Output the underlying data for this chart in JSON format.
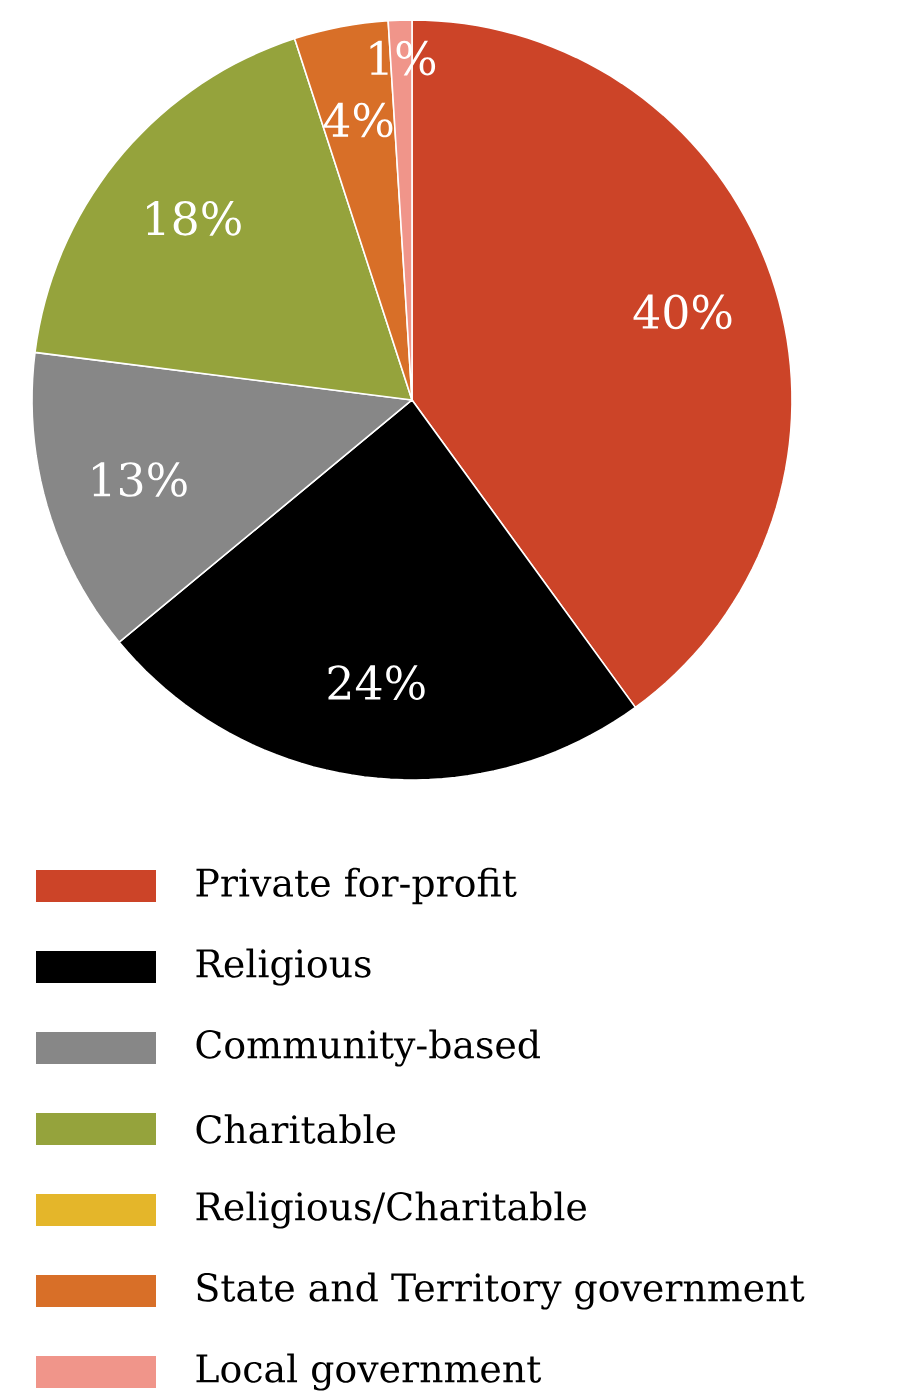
{
  "chart_data": {
    "type": "pie",
    "categories": [
      "Private for-profit",
      "Religious",
      "Community-based",
      "Charitable",
      "Religious/Charitable",
      "State and Territory government",
      "Local government"
    ],
    "values": [
      40,
      24,
      13,
      18,
      0,
      4,
      1
    ],
    "colors": [
      "#cc4428",
      "#000000",
      "#878787",
      "#95a33c",
      "#e4b62a",
      "#d86f28",
      "#f0958a"
    ],
    "value_labels": [
      "40%",
      "24%",
      "13%",
      "18%",
      null,
      "4%",
      "1%"
    ],
    "legend": "bottom"
  }
}
